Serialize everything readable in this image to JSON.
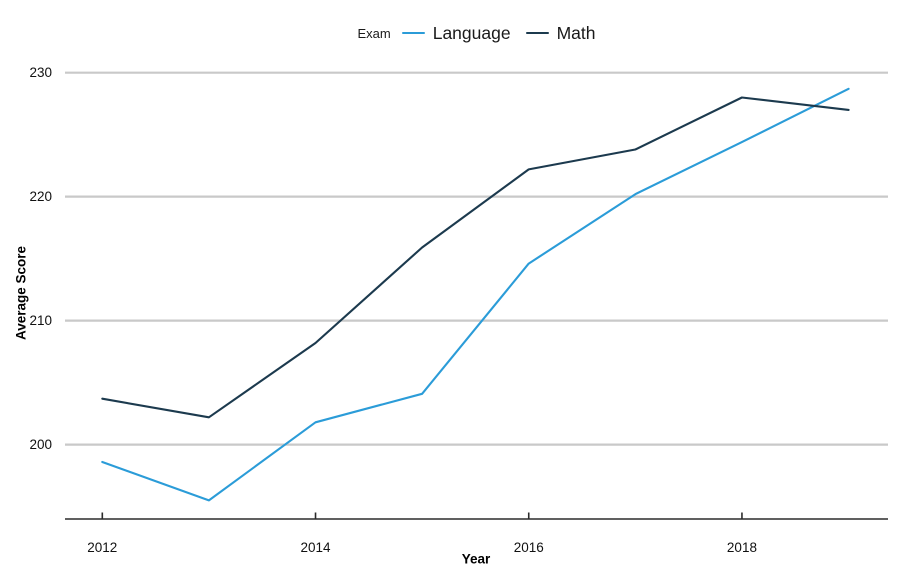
{
  "chart_data": {
    "type": "line",
    "title": "",
    "legend_title": "Exam",
    "legend_position": "top-center",
    "xlabel": "Year",
    "ylabel": "Average Score",
    "x": [
      2012,
      2013,
      2014,
      2015,
      2016,
      2017,
      2018,
      2019
    ],
    "series": [
      {
        "name": "Language",
        "color": "#2B9CD8",
        "values": [
          198.6,
          195.5,
          201.8,
          204.1,
          214.6,
          220.2,
          224.4,
          228.7
        ]
      },
      {
        "name": "Math",
        "color": "#1C3A4E",
        "values": [
          203.7,
          202.2,
          208.2,
          215.9,
          222.2,
          223.8,
          228.0,
          227.0
        ]
      }
    ],
    "xticks": [
      2012,
      2014,
      2016,
      2018
    ],
    "yticks": [
      200,
      210,
      220,
      230
    ],
    "xlim": [
      2011.65,
      2019.37
    ],
    "ylim": [
      194.0,
      230.7
    ],
    "grid": "horizontal-only",
    "colors": {
      "background": "#ffffff",
      "grid": "#C9C9C9",
      "axis": "#2B2B2B",
      "tick_text": "#111111"
    }
  }
}
